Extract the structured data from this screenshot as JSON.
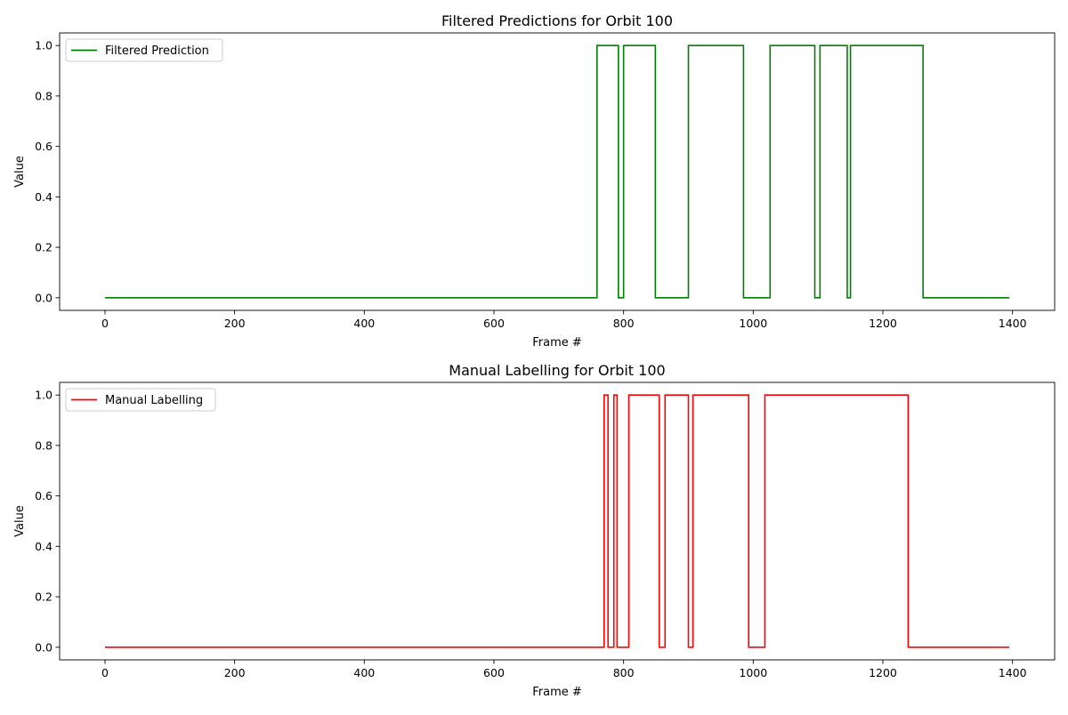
{
  "chart_data": [
    {
      "type": "line",
      "title": "Filtered Predictions for Orbit 100",
      "xlabel": "Frame #",
      "ylabel": "Value",
      "xlim": [
        -70,
        1465
      ],
      "ylim": [
        -0.05,
        1.05
      ],
      "x_ticks": [
        "0",
        "200",
        "400",
        "600",
        "800",
        "1000",
        "1200",
        "1400"
      ],
      "y_ticks": [
        "0.0",
        "0.2",
        "0.4",
        "0.6",
        "0.8",
        "1.0"
      ],
      "grid": false,
      "legend_position": "upper left",
      "series": [
        {
          "name": "Filtered Prediction",
          "color": "#008000",
          "step": true,
          "x_end": 1395,
          "segments_value_1": [
            [
              759,
              792
            ],
            [
              800,
              849
            ],
            [
              900,
              985
            ],
            [
              1026,
              1095
            ],
            [
              1103,
              1145
            ],
            [
              1150,
              1262
            ]
          ]
        }
      ]
    },
    {
      "type": "line",
      "title": "Manual Labelling for Orbit 100",
      "xlabel": "Frame #",
      "ylabel": "Value",
      "xlim": [
        -70,
        1465
      ],
      "ylim": [
        -0.05,
        1.05
      ],
      "x_ticks": [
        "0",
        "200",
        "400",
        "600",
        "800",
        "1000",
        "1200",
        "1400"
      ],
      "y_ticks": [
        "0.0",
        "0.2",
        "0.4",
        "0.6",
        "0.8",
        "1.0"
      ],
      "grid": false,
      "legend_position": "upper left",
      "series": [
        {
          "name": "Manual Labelling",
          "color": "#ff0000",
          "step": true,
          "x_end": 1395,
          "segments_value_1": [
            [
              770,
              776
            ],
            [
              785,
              790
            ],
            [
              808,
              855
            ],
            [
              864,
              900
            ],
            [
              907,
              993
            ],
            [
              1018,
              1239
            ]
          ]
        }
      ]
    }
  ]
}
